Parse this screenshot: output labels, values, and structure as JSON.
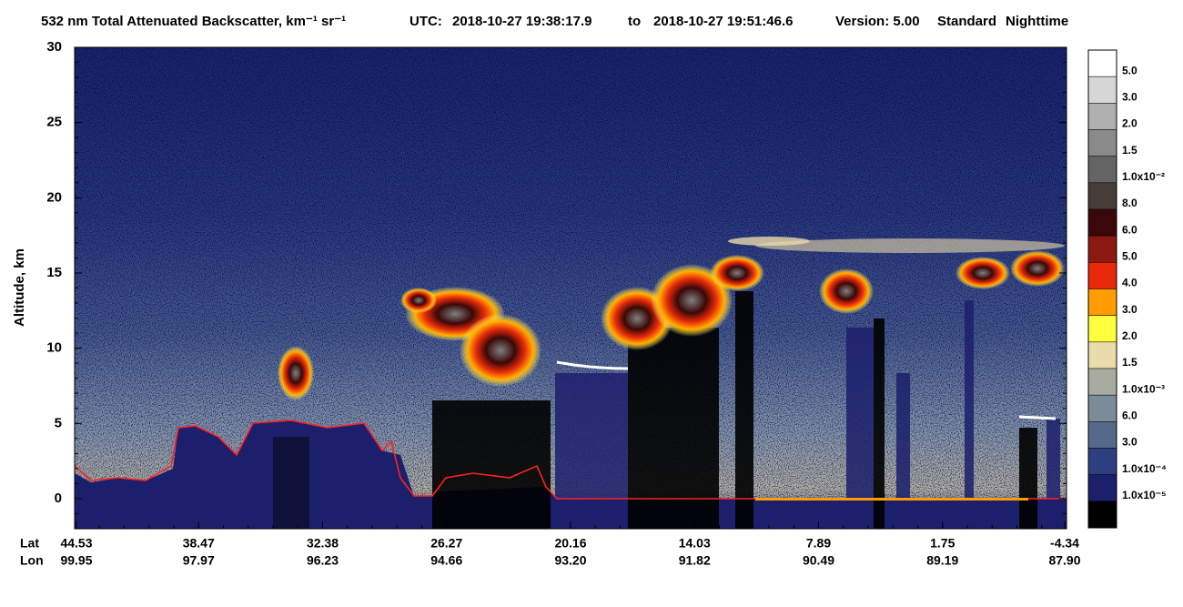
{
  "chart_data": {
    "type": "curtain",
    "title": "532 nm Total Attenuated Backscatter, km⁻¹ sr⁻¹",
    "utc_label": "UTC:",
    "start": "2018-10-27 19:38:17.9",
    "to": "to",
    "end": "2018-10-27 19:51:46.6",
    "version": "Version: 5.00",
    "product": "Standard",
    "mode": "Nighttime",
    "y_label": "Altitude, km",
    "ylim": [
      -2,
      30
    ],
    "yticks": [
      0,
      5,
      10,
      15,
      20,
      25,
      30
    ],
    "row_labels": [
      "Lat",
      "Lon"
    ],
    "lat": [
      "44.53",
      "38.47",
      "32.38",
      "26.27",
      "20.16",
      "14.03",
      "7.89",
      "1.75",
      "-4.34"
    ],
    "lon": [
      "99.95",
      "97.97",
      "96.23",
      "94.66",
      "93.20",
      "91.82",
      "90.49",
      "89.19",
      "87.90"
    ],
    "colorbar": {
      "colors": [
        "#ffffff",
        "#d6d6d6",
        "#b0b0b0",
        "#8a8a8a",
        "#646464",
        "#463c3a",
        "#3a0808",
        "#8c1a10",
        "#e82a0a",
        "#ff9c00",
        "#ffff40",
        "#eadbaa",
        "#a8aca0",
        "#7a8c98",
        "#56698a",
        "#2e3f80",
        "#1c1f6c",
        "#000000"
      ],
      "labels": [
        "5.0",
        "3.0",
        "2.0",
        "1.5",
        "1.0x10⁻²",
        "8.0",
        "6.0",
        "5.0",
        "4.0",
        "3.0",
        "2.0",
        "1.5",
        "1.0x10⁻³",
        "6.0",
        "3.0",
        "1.0x10⁻⁴",
        "1.0x10⁻⁵"
      ]
    }
  }
}
